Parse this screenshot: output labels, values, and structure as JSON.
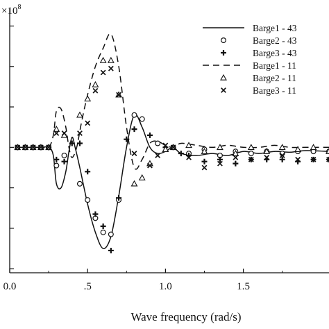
{
  "chart_data": {
    "type": "line",
    "xlabel": "Wave frequency (rad/s)",
    "ylabel": "",
    "y_exponent_label": "×10",
    "y_exponent_power": "8",
    "xlim": [
      0.0,
      2.05
    ],
    "ylim": [
      -3.1,
      3.3
    ],
    "x_ticks": [
      {
        "value": 0.0,
        "label": "0.0"
      },
      {
        "value": 0.5,
        "label": ".5"
      },
      {
        "value": 1.0,
        "label": "1.0"
      },
      {
        "value": 1.5,
        "label": "1.5"
      }
    ],
    "y_tick_values": [
      -3,
      -2,
      -1,
      0,
      1,
      2,
      3
    ],
    "grid": false,
    "legend_position": "top-right",
    "series": [
      {
        "name": "Barge1 - 43",
        "style": "solid",
        "marker": "none",
        "color": "#111111",
        "x": [
          0.05,
          0.1,
          0.2,
          0.25,
          0.28,
          0.3,
          0.33,
          0.36,
          0.38,
          0.4,
          0.42,
          0.45,
          0.5,
          0.55,
          0.6,
          0.65,
          0.7,
          0.75,
          0.8,
          0.85,
          0.9,
          0.95,
          1.0,
          1.05,
          1.1,
          1.2,
          1.3,
          1.4,
          1.5,
          1.6,
          1.7,
          1.8,
          1.9,
          2.05
        ],
        "y": [
          0.0,
          0.0,
          0.0,
          0.0,
          -0.2,
          -0.9,
          -1.0,
          -0.6,
          -0.1,
          0.25,
          0.0,
          -0.5,
          -1.4,
          -2.1,
          -2.5,
          -2.2,
          -1.2,
          0.0,
          0.8,
          0.5,
          0.0,
          -0.15,
          -0.1,
          0.0,
          -0.15,
          -0.2,
          -0.15,
          -0.2,
          -0.1,
          -0.15,
          -0.1,
          -0.12,
          -0.08,
          -0.1
        ]
      },
      {
        "name": "Barge2 - 43",
        "style": "none",
        "marker": "circle",
        "color": "#111111",
        "x": [
          0.05,
          0.1,
          0.15,
          0.2,
          0.25,
          0.3,
          0.35,
          0.45,
          0.5,
          0.55,
          0.6,
          0.65,
          0.7,
          0.8,
          0.85,
          0.95,
          1.05,
          1.15,
          1.25,
          1.35,
          1.45,
          1.55,
          1.65,
          1.75,
          1.85,
          1.95,
          2.05
        ],
        "y": [
          0.0,
          0.0,
          0.0,
          0.0,
          0.0,
          -0.45,
          -0.2,
          -0.9,
          -1.3,
          -1.75,
          -2.1,
          -2.15,
          -1.3,
          0.8,
          0.7,
          0.1,
          0.0,
          -0.15,
          -0.05,
          -0.2,
          -0.1,
          -0.15,
          -0.1,
          -0.15,
          -0.1,
          -0.1,
          -0.1
        ]
      },
      {
        "name": "Barge3 - 43",
        "style": "none",
        "marker": "plus",
        "color": "#111111",
        "x": [
          0.05,
          0.1,
          0.15,
          0.2,
          0.25,
          0.3,
          0.35,
          0.4,
          0.45,
          0.5,
          0.55,
          0.6,
          0.65,
          0.7,
          0.75,
          0.8,
          0.9,
          1.0,
          1.1,
          1.15,
          1.25,
          1.35,
          1.45,
          1.55,
          1.65,
          1.75,
          1.85,
          1.95,
          2.05
        ],
        "y": [
          0.0,
          0.0,
          0.0,
          0.0,
          0.0,
          -0.3,
          -0.35,
          0.1,
          0.1,
          -0.6,
          -1.65,
          -1.95,
          -2.55,
          -1.25,
          0.2,
          0.45,
          0.3,
          0.0,
          -0.15,
          -0.2,
          -0.35,
          -0.3,
          -0.4,
          -0.3,
          -0.3,
          -0.3,
          -0.35,
          -0.3,
          -0.3
        ]
      },
      {
        "name": "Barge1 - 11",
        "style": "dashed",
        "marker": "none",
        "color": "#111111",
        "x": [
          0.05,
          0.1,
          0.2,
          0.25,
          0.28,
          0.3,
          0.33,
          0.36,
          0.38,
          0.4,
          0.43,
          0.46,
          0.5,
          0.55,
          0.6,
          0.65,
          0.7,
          0.75,
          0.8,
          0.85,
          0.9,
          0.95,
          1.0,
          1.05,
          1.1,
          1.2,
          1.3,
          1.4,
          1.5,
          1.6,
          1.7,
          1.8,
          1.9,
          2.05
        ],
        "y": [
          0.0,
          0.0,
          0.0,
          0.0,
          0.3,
          0.9,
          0.95,
          0.5,
          0.0,
          -0.25,
          0.0,
          0.6,
          1.3,
          2.0,
          2.45,
          2.8,
          2.0,
          0.5,
          -0.5,
          -0.3,
          0.1,
          0.15,
          0.05,
          0.0,
          0.1,
          0.05,
          0.0,
          0.05,
          0.0,
          0.0,
          0.05,
          0.0,
          0.0,
          0.0
        ]
      },
      {
        "name": "Barge2 - 11",
        "style": "none",
        "marker": "triangle",
        "color": "#111111",
        "x": [
          0.05,
          0.1,
          0.15,
          0.2,
          0.25,
          0.3,
          0.35,
          0.45,
          0.5,
          0.55,
          0.6,
          0.65,
          0.7,
          0.8,
          0.85,
          0.9,
          1.0,
          1.05,
          1.15,
          1.25,
          1.35,
          1.45,
          1.55,
          1.65,
          1.75,
          1.85,
          1.95,
          2.05
        ],
        "y": [
          0.0,
          0.0,
          0.0,
          0.0,
          0.0,
          0.45,
          0.3,
          0.8,
          1.2,
          1.55,
          2.15,
          2.15,
          1.3,
          -0.9,
          -0.75,
          -0.4,
          -0.05,
          0.0,
          0.05,
          -0.1,
          0.0,
          -0.15,
          0.0,
          -0.1,
          0.0,
          -0.05,
          0.0,
          -0.1
        ]
      },
      {
        "name": "Barge3 - 11",
        "style": "none",
        "marker": "x",
        "color": "#111111",
        "x": [
          0.05,
          0.1,
          0.15,
          0.2,
          0.25,
          0.3,
          0.35,
          0.45,
          0.5,
          0.55,
          0.6,
          0.65,
          0.7,
          0.8,
          0.9,
          0.95,
          1.0,
          1.05,
          1.15,
          1.25,
          1.35,
          1.45,
          1.55,
          1.65,
          1.75,
          1.85,
          1.95,
          2.05
        ],
        "y": [
          0.0,
          0.0,
          0.0,
          0.0,
          0.0,
          0.35,
          0.35,
          0.35,
          0.6,
          1.4,
          1.85,
          1.95,
          1.3,
          -0.15,
          -0.45,
          -0.2,
          0.05,
          0.0,
          -0.25,
          -0.5,
          -0.4,
          -0.25,
          -0.3,
          -0.25,
          -0.2,
          -0.3,
          -0.3,
          -0.3
        ]
      }
    ]
  }
}
